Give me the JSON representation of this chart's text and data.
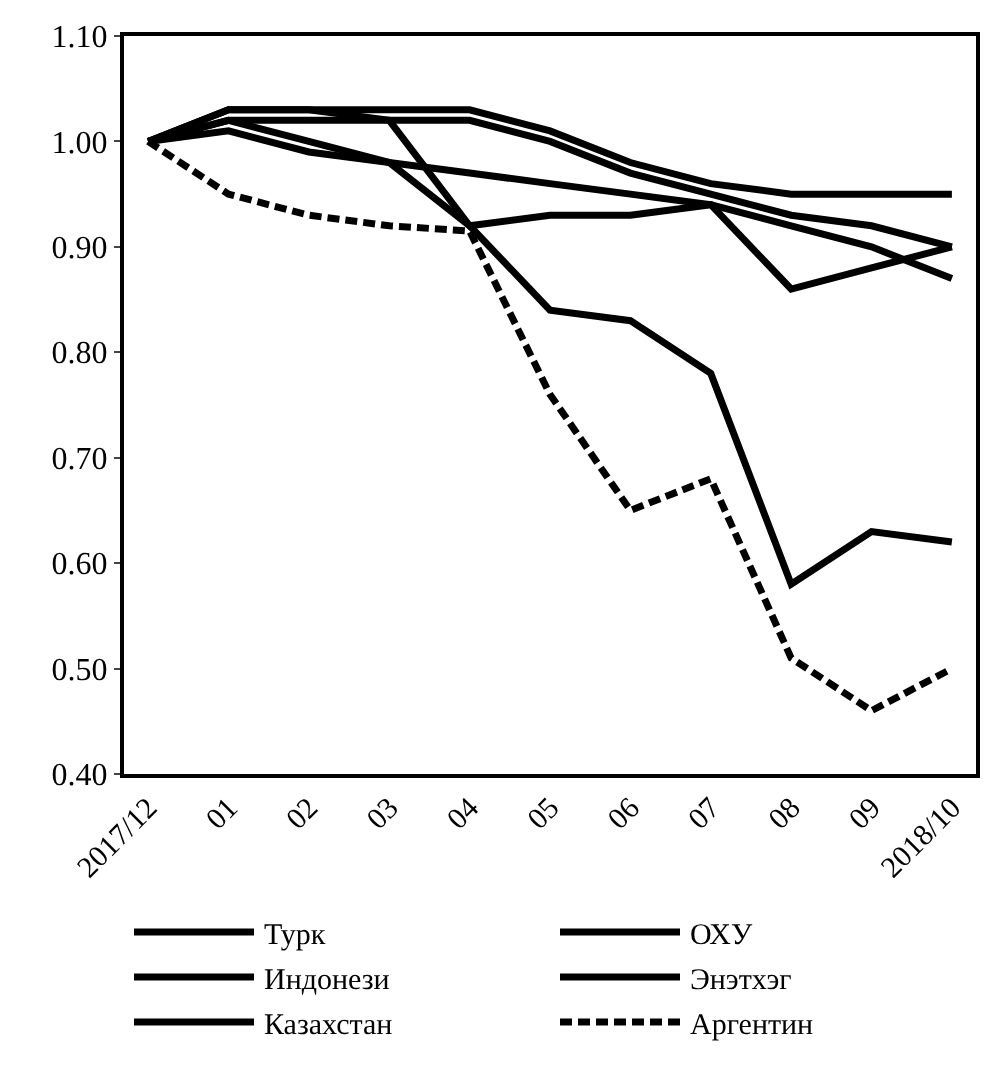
{
  "chart_data": {
    "type": "line",
    "categories": [
      "2017/12",
      "01",
      "02",
      "03",
      "04",
      "05",
      "06",
      "07",
      "08",
      "09",
      "2018/10"
    ],
    "ylim": [
      0.4,
      1.1
    ],
    "yticks": [
      {
        "value": 0.4,
        "label": "0.40"
      },
      {
        "value": 0.5,
        "label": "0.50"
      },
      {
        "value": 0.6,
        "label": "0.60"
      },
      {
        "value": 0.7,
        "label": "0.70"
      },
      {
        "value": 0.8,
        "label": "0.80"
      },
      {
        "value": 0.9,
        "label": "0.90"
      },
      {
        "value": 1.0,
        "label": "1.00"
      },
      {
        "value": 1.1,
        "label": "1.10"
      }
    ],
    "legend": "bottom",
    "marker": "none",
    "series": [
      {
        "name": "Турк",
        "color": "#000000",
        "line_style": "solid",
        "values": [
          1.0,
          1.03,
          1.03,
          1.02,
          0.92,
          0.84,
          0.83,
          0.78,
          0.58,
          0.63,
          0.62
        ]
      },
      {
        "name": "ОХУ",
        "color": "#000000",
        "line_style": "solid",
        "values": [
          1.0,
          1.03,
          1.03,
          1.03,
          1.03,
          1.01,
          0.98,
          0.96,
          0.95,
          0.95,
          0.95
        ]
      },
      {
        "name": "Индонези",
        "color": "#000000",
        "line_style": "solid",
        "values": [
          1.0,
          1.02,
          1.0,
          0.98,
          0.92,
          0.93,
          0.93,
          0.94,
          0.86,
          0.88,
          0.9
        ]
      },
      {
        "name": "Энэтхэг",
        "color": "#000000",
        "line_style": "solid",
        "values": [
          1.0,
          1.01,
          0.99,
          0.98,
          0.97,
          0.96,
          0.95,
          0.94,
          0.92,
          0.9,
          0.87
        ]
      },
      {
        "name": "Казахстан",
        "color": "#000000",
        "line_style": "solid",
        "values": [
          1.0,
          1.02,
          1.02,
          1.02,
          1.02,
          1.0,
          0.97,
          0.95,
          0.93,
          0.92,
          0.9
        ]
      },
      {
        "name": "Аргентин",
        "color": "#000000",
        "line_style": "dashed",
        "values": [
          1.0,
          0.95,
          0.93,
          0.92,
          0.915,
          0.76,
          0.65,
          0.68,
          0.51,
          0.46,
          0.5
        ]
      }
    ]
  }
}
